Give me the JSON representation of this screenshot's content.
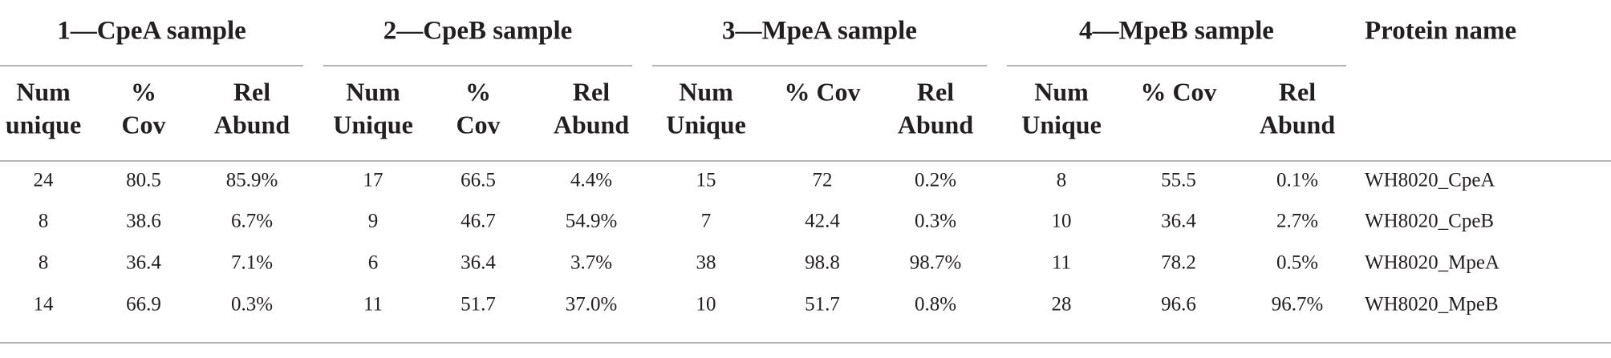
{
  "table": {
    "groups": [
      {
        "title": "1—CpeA sample",
        "columns": [
          [
            "Num",
            "unique"
          ],
          [
            "%",
            "Cov"
          ],
          [
            "Rel",
            "Abund"
          ]
        ]
      },
      {
        "title": "2—CpeB sample",
        "columns": [
          [
            "Num",
            "Unique"
          ],
          [
            "%",
            "Cov"
          ],
          [
            "Rel",
            "Abund"
          ]
        ]
      },
      {
        "title": "3—MpeA sample",
        "columns": [
          [
            "Num",
            "Unique"
          ],
          [
            "% Cov"
          ],
          [
            "Rel",
            "Abund"
          ]
        ]
      },
      {
        "title": "4—MpeB sample",
        "columns": [
          [
            "Num",
            "Unique"
          ],
          [
            "% Cov"
          ],
          [
            "Rel",
            "Abund"
          ]
        ]
      }
    ],
    "protein_header": "Protein name",
    "rows": [
      {
        "cells": [
          "24",
          "80.5",
          "85.9%",
          "17",
          "66.5",
          "4.4%",
          "15",
          "72",
          "0.2%",
          "8",
          "55.5",
          "0.1%"
        ],
        "protein": "WH8020_CpeA"
      },
      {
        "cells": [
          "8",
          "38.6",
          "6.7%",
          "9",
          "46.7",
          "54.9%",
          "7",
          "42.4",
          "0.3%",
          "10",
          "36.4",
          "2.7%"
        ],
        "protein": "WH8020_CpeB"
      },
      {
        "cells": [
          "8",
          "36.4",
          "7.1%",
          "6",
          "36.4",
          "3.7%",
          "38",
          "98.8",
          "98.7%",
          "11",
          "78.2",
          "0.5%"
        ],
        "protein": "WH8020_MpeA"
      },
      {
        "cells": [
          "14",
          "66.9",
          "0.3%",
          "11",
          "51.7",
          "37.0%",
          "10",
          "51.7",
          "0.8%",
          "28",
          "96.6",
          "96.7%"
        ],
        "protein": "WH8020_MpeB"
      }
    ]
  }
}
